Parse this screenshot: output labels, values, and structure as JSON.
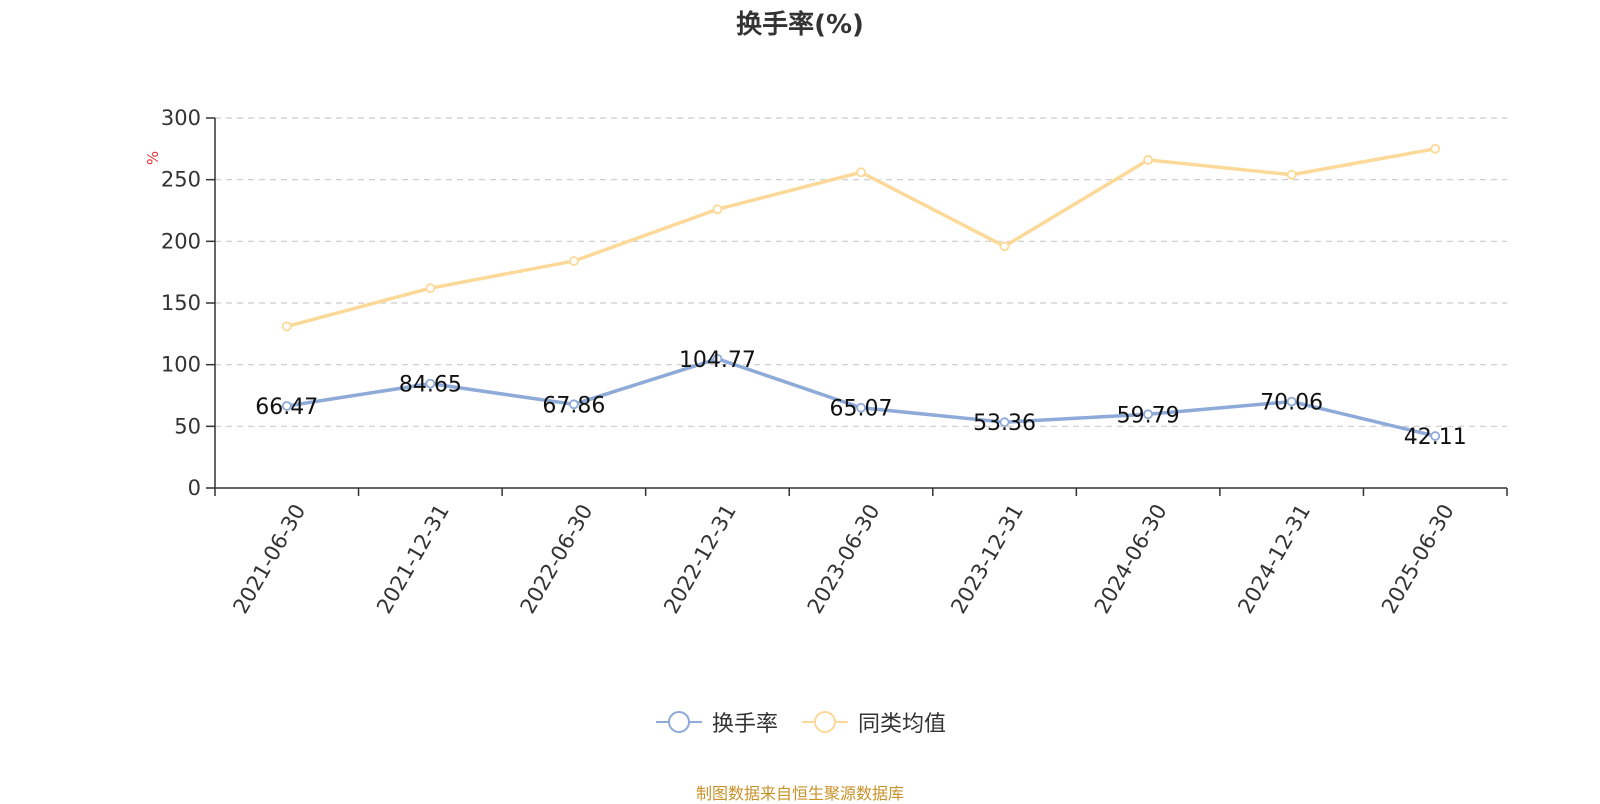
{
  "title": "换手率(%)",
  "source_note": "制图数据来自恒生聚源数据库",
  "colors": {
    "series_1": "#8eaad8",
    "series_2": "#fcd998",
    "unit": "#e8343a",
    "source": "#c8922a",
    "grid": "#cccccc",
    "axis": "#333333"
  },
  "chart_data": {
    "type": "line",
    "title": "换手率(%)",
    "ylabel": "%",
    "xlabel": "",
    "ylim": [
      0,
      300
    ],
    "yticks": [
      0,
      50,
      100,
      150,
      200,
      250,
      300
    ],
    "grid": true,
    "legend_position": "bottom-center",
    "categories": [
      "2021-06-30",
      "2021-12-31",
      "2022-06-30",
      "2022-12-31",
      "2023-06-30",
      "2023-12-31",
      "2024-06-30",
      "2024-12-31",
      "2025-06-30"
    ],
    "series": [
      {
        "name": "换手率",
        "values": [
          66.47,
          84.65,
          67.86,
          104.77,
          65.07,
          53.36,
          59.79,
          70.06,
          42.11
        ],
        "show_labels": true
      },
      {
        "name": "同类均值",
        "values": [
          131,
          162,
          184,
          226,
          256,
          196,
          266,
          254,
          275
        ],
        "show_labels": false
      }
    ]
  }
}
